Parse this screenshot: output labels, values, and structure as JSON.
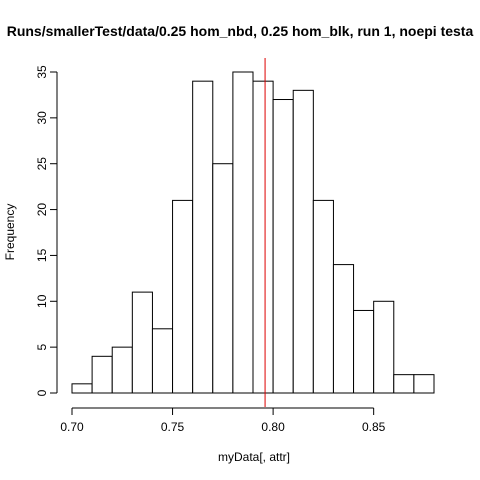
{
  "chart_data": {
    "type": "bar",
    "subtype": "histogram",
    "title": "Runs/smallerTest/data/0.25 hom_nbd, 0.25 hom_blk, run 1, noepi testa",
    "xlabel": "myData[, attr]",
    "ylabel": "Frequency",
    "xlim": [
      0.7,
      0.88
    ],
    "ylim": [
      0,
      35
    ],
    "x_ticks": [
      "0.70",
      "0.75",
      "0.80",
      "0.85"
    ],
    "y_ticks": [
      "0",
      "5",
      "10",
      "15",
      "20",
      "25",
      "30",
      "35"
    ],
    "bin_width": 0.01,
    "bin_starts": [
      0.7,
      0.71,
      0.72,
      0.73,
      0.74,
      0.75,
      0.76,
      0.77,
      0.78,
      0.79,
      0.8,
      0.81,
      0.82,
      0.83,
      0.84,
      0.85,
      0.86,
      0.87
    ],
    "values": [
      1,
      4,
      5,
      11,
      7,
      21,
      34,
      25,
      35,
      34,
      32,
      33,
      21,
      14,
      9,
      10,
      2,
      2
    ],
    "reference_line_x": 0.796,
    "bar_fill": "#ffffff",
    "bar_stroke": "#000000",
    "reference_line_color": "#dd0000",
    "grid": false,
    "legend": "none"
  }
}
